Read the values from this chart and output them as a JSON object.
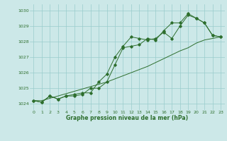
{
  "title": "Graphe pression niveau de la mer (hPa)",
  "background_color": "#cce8e8",
  "grid_color": "#99cccc",
  "line_color": "#2d6e2d",
  "x_min": -0.5,
  "x_max": 23.5,
  "y_min": 1023.6,
  "y_max": 1030.4,
  "yticks": [
    1024,
    1025,
    1026,
    1027,
    1028,
    1029,
    1030
  ],
  "xticks": [
    0,
    1,
    2,
    3,
    4,
    5,
    6,
    7,
    8,
    9,
    10,
    11,
    12,
    13,
    14,
    15,
    16,
    17,
    18,
    19,
    20,
    21,
    22,
    23
  ],
  "series1": [
    1024.2,
    1024.1,
    1024.5,
    1024.3,
    1024.5,
    1024.6,
    1024.7,
    1024.7,
    1025.4,
    1025.9,
    1027.0,
    1027.7,
    1028.3,
    1028.2,
    1028.1,
    1028.2,
    1028.6,
    1028.2,
    1029.0,
    1029.7,
    1029.5,
    1029.2,
    1028.4,
    1028.3
  ],
  "series2": [
    1024.2,
    1024.1,
    1024.5,
    1024.3,
    1024.5,
    1024.5,
    1024.6,
    1025.0,
    1025.0,
    1025.4,
    1026.5,
    1027.6,
    1027.7,
    1027.8,
    1028.2,
    1028.1,
    1028.7,
    1029.2,
    1029.2,
    1029.8,
    1029.5,
    1029.2,
    1028.4,
    1028.3
  ],
  "series3": [
    1024.2,
    1024.2,
    1024.35,
    1024.5,
    1024.65,
    1024.8,
    1024.95,
    1025.1,
    1025.25,
    1025.4,
    1025.6,
    1025.8,
    1026.0,
    1026.2,
    1026.4,
    1026.65,
    1026.9,
    1027.15,
    1027.4,
    1027.6,
    1027.9,
    1028.1,
    1028.2,
    1028.3
  ]
}
